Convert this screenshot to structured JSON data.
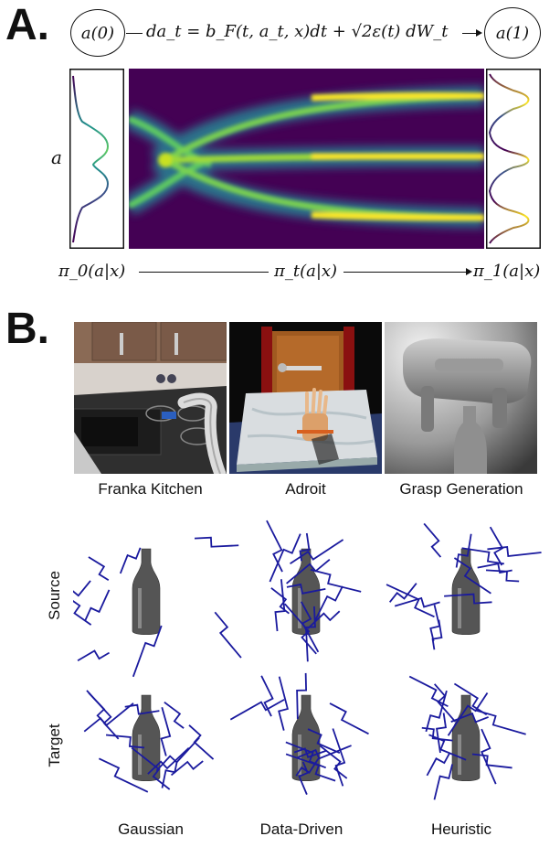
{
  "panel_a": {
    "letter": "A.",
    "start_node": "a(0)",
    "end_node": "a(1)",
    "equation": "da_t = b_F(t, a_t, x)dt + √2ε(t) dW_t",
    "axis_label": "a",
    "dist_labels": [
      "π_0(a|x)",
      "π_t(a|x)",
      "π_1(a|x)"
    ],
    "colormap": "viridis",
    "mode_positions_at_t1": [
      0.2,
      0.5,
      0.8
    ]
  },
  "panel_b": {
    "letter": "B.",
    "environments": [
      {
        "caption": "Franka Kitchen"
      },
      {
        "caption": "Adroit"
      },
      {
        "caption": "Grasp Generation"
      }
    ],
    "row_labels": [
      "Source",
      "Target"
    ],
    "columns": [
      "Gaussian",
      "Data-Driven",
      "Heuristic"
    ],
    "grasp_color": "#1a1a9e",
    "bottle_color": "#555555"
  }
}
